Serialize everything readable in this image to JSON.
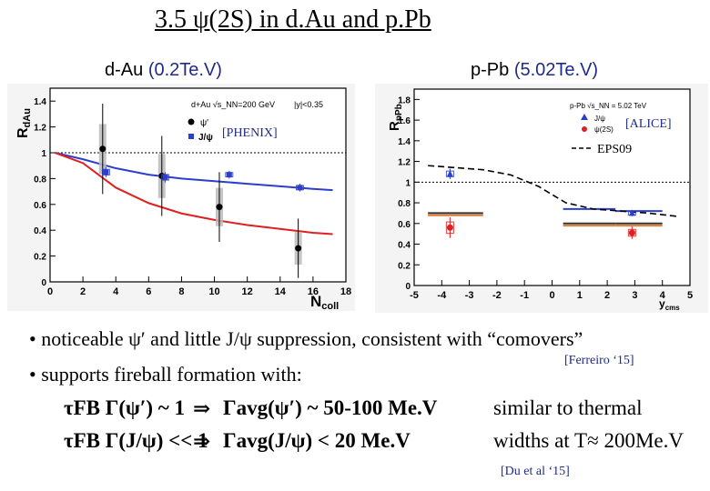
{
  "title": "3.5 ψ(2S)  in d.Au and p.Pb",
  "left_caption": {
    "system": "d-Au",
    "energy": "(0.2Te.V)"
  },
  "right_caption": {
    "system": "p-Pb",
    "energy": "(5.02Te.V)"
  },
  "left_legend": {
    "header": "d+Au",
    "energy": "√s_NN=200 GeV",
    "rapidity": "|y|<0.35",
    "items": [
      "ψ′",
      "J/ψ"
    ],
    "tag": "[PHENIX]"
  },
  "right_legend": {
    "header": "p-Pb √s_NN = 5.02 TeV",
    "items": [
      "J/ψ",
      "ψ(2S)"
    ],
    "tag": "[ALICE]",
    "model": "EPS09"
  },
  "bullets": {
    "b1": "• noticeable ψ′ and little J/ψ suppression, consistent with “comovers”",
    "b1_ref": "[Ferreiro ‘15]",
    "b2": "• supports fireball formation with:",
    "eq1_left": "τFB  Γ(ψ′)  ~ 1",
    "eq1_right": "Γavg(ψ′) ~ 50-100 Me.V",
    "eq2_left": "τFB  Γ(J/ψ) << 1",
    "eq2_right": "Γavg(J/ψ) < 20 Me.V",
    "note1": "similar to thermal",
    "note2": "widths at T≈ 200Me.V",
    "note_ref": "[Du et al ‘15]"
  },
  "chart_data": [
    {
      "type": "scatter",
      "xlabel": "N_coll",
      "ylabel": "R_dAu",
      "xlim": [
        0,
        18
      ],
      "ylim": [
        0,
        1.5
      ],
      "x_ticks": [
        0,
        2,
        4,
        6,
        8,
        10,
        12,
        14,
        16,
        18
      ],
      "y_ticks": [
        0,
        0.2,
        0.4,
        0.6,
        0.8,
        1,
        1.2,
        1.4
      ],
      "series": [
        {
          "name": "ψ′",
          "marker": "circle",
          "color": "#000000",
          "points": [
            {
              "x": 3.2,
              "y": 1.03,
              "err": 0.35
            },
            {
              "x": 6.8,
              "y": 0.82,
              "err": 0.31
            },
            {
              "x": 10.3,
              "y": 0.58,
              "err": 0.27
            },
            {
              "x": 15.1,
              "y": 0.26,
              "err": 0.23
            }
          ]
        },
        {
          "name": "J/ψ",
          "marker": "square",
          "color": "#2b3fcf",
          "points": [
            {
              "x": 3.4,
              "y": 0.85,
              "err": 0.04
            },
            {
              "x": 7.0,
              "y": 0.81,
              "err": 0.04
            },
            {
              "x": 10.9,
              "y": 0.83,
              "err": 0.03
            },
            {
              "x": 15.2,
              "y": 0.73,
              "err": 0.03
            }
          ]
        }
      ],
      "curves": [
        {
          "name": "J/ψ model",
          "color": "#2b3fcf",
          "x": [
            0.3,
            2,
            4,
            6,
            8,
            10,
            12,
            14,
            16,
            17.2
          ],
          "y": [
            1.0,
            0.95,
            0.88,
            0.83,
            0.8,
            0.78,
            0.76,
            0.74,
            0.72,
            0.71
          ]
        },
        {
          "name": "ψ′ model",
          "color": "#e02020",
          "x": [
            0.3,
            2,
            4,
            6,
            8,
            10,
            12,
            14,
            16,
            17.2
          ],
          "y": [
            1.0,
            0.92,
            0.73,
            0.61,
            0.53,
            0.48,
            0.44,
            0.41,
            0.38,
            0.37
          ]
        }
      ],
      "reference_line": 1.0
    },
    {
      "type": "scatter",
      "xlabel": "y_cms",
      "ylabel": "R_pPb",
      "xlim": [
        -5,
        5
      ],
      "ylim": [
        0,
        1.9
      ],
      "x_ticks": [
        -5,
        -4,
        -3,
        -2,
        -1,
        0,
        1,
        2,
        3,
        4,
        5
      ],
      "y_ticks": [
        0,
        0.2,
        0.4,
        0.6,
        0.8,
        1,
        1.2,
        1.4,
        1.6,
        1.8
      ],
      "series": [
        {
          "name": "J/ψ",
          "marker": "triangle",
          "color": "#2b3fcf",
          "points": [
            {
              "x": -3.7,
              "y": 1.08,
              "err": 0.05
            },
            {
              "x": 2.9,
              "y": 0.7,
              "err": 0.03
            }
          ]
        },
        {
          "name": "ψ(2S)",
          "marker": "circle",
          "color": "#e02020",
          "points": [
            {
              "x": -3.7,
              "y": 0.56,
              "err": 0.1
            },
            {
              "x": 2.9,
              "y": 0.51,
              "err": 0.06
            }
          ]
        }
      ],
      "bands": [
        {
          "x": [
            -4.5,
            -2.5
          ],
          "y": 0.68,
          "color": "#e07a30"
        },
        {
          "x": [
            -4.5,
            -2.5
          ],
          "y": 0.7,
          "color": "#333333"
        },
        {
          "x": [
            0.4,
            2.3
          ],
          "y": 0.58,
          "color": "#e07a30"
        },
        {
          "x": [
            0.4,
            2.3
          ],
          "y": 0.6,
          "color": "#333333"
        },
        {
          "x": [
            0.4,
            2.3
          ],
          "y": 0.74,
          "color": "#2b3fcf"
        },
        {
          "x": [
            2.3,
            4.0
          ],
          "y": 0.58,
          "color": "#e07a30"
        },
        {
          "x": [
            2.3,
            4.0
          ],
          "y": 0.6,
          "color": "#333333"
        },
        {
          "x": [
            2.3,
            4.0
          ],
          "y": 0.72,
          "color": "#2b3fcf"
        }
      ],
      "model_curve": {
        "name": "EPS09",
        "x": [
          -4.5,
          -3.5,
          -2.5,
          -1.5,
          -0.5,
          0.5,
          1.5,
          2.5,
          3.5,
          4.5
        ],
        "y": [
          1.16,
          1.14,
          1.12,
          1.07,
          0.96,
          0.8,
          0.74,
          0.72,
          0.7,
          0.67
        ]
      },
      "reference_line": 1.0
    }
  ]
}
